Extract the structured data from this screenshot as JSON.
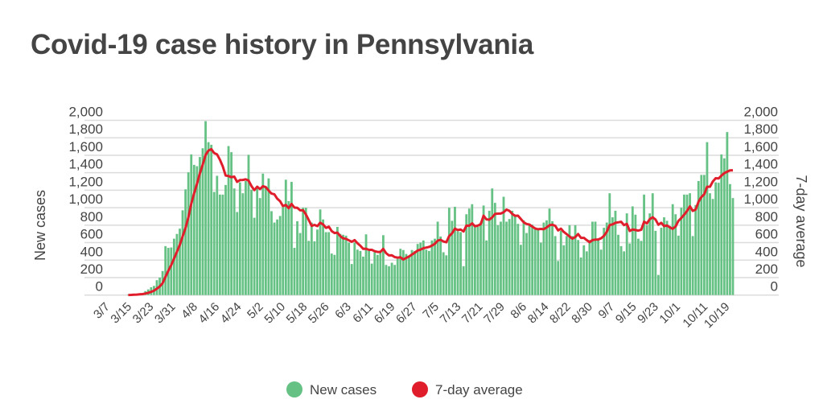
{
  "chart_data": {
    "type": "bar",
    "title": "Covid-19 case history in Pennsylvania",
    "ylabel": "New cases",
    "ylabel_right": "7-day average",
    "ylim": [
      0,
      2000
    ],
    "yticks": [
      "0",
      "200",
      "400",
      "600",
      "800",
      "1,000",
      "1,200",
      "1,400",
      "1,600",
      "1,800",
      "2,000"
    ],
    "ytick_values": [
      0,
      200,
      400,
      600,
      800,
      1000,
      1200,
      1400,
      1600,
      1800,
      2000
    ],
    "xtick_labels": [
      "3/7",
      "3/15",
      "3/23",
      "3/31",
      "4/8",
      "4/16",
      "4/24",
      "5/2",
      "5/10",
      "5/18",
      "5/26",
      "6/3",
      "6/11",
      "6/19",
      "6/27",
      "7/5",
      "7/13",
      "7/21",
      "7/29",
      "8/6",
      "8/14",
      "8/22",
      "8/30",
      "9/7",
      "9/15",
      "9/23",
      "10/1",
      "10/11",
      "10/19"
    ],
    "xtick_day_offsets": [
      0,
      8,
      16,
      24,
      32,
      40,
      48,
      56,
      64,
      72,
      80,
      88,
      96,
      104,
      112,
      120,
      128,
      136,
      144,
      152,
      160,
      168,
      176,
      184,
      192,
      200,
      208,
      218,
      226
    ],
    "grid": true,
    "legend_placement": "bottom-center",
    "series": [
      {
        "name": "New cases",
        "type": "bar",
        "color": "#66c284",
        "values": [
          0,
          0,
          0,
          0,
          0,
          0,
          5,
          10,
          10,
          15,
          15,
          20,
          45,
          65,
          90,
          105,
          170,
          200,
          275,
          560,
          540,
          545,
          645,
          700,
          760,
          970,
          1210,
          1405,
          1610,
          1490,
          1475,
          1580,
          1680,
          1990,
          1750,
          1720,
          1180,
          1365,
          1150,
          1150,
          1260,
          1705,
          1635,
          1220,
          950,
          1290,
          1165,
          1305,
          1605,
          1205,
          885,
          1220,
          1110,
          1390,
          1230,
          1335,
          960,
          830,
          865,
          905,
          1005,
          1320,
          1075,
          1295,
          540,
          845,
          710,
          1000,
          1000,
          620,
          830,
          615,
          750,
          980,
          865,
          720,
          720,
          475,
          460,
          780,
          700,
          690,
          680,
          600,
          355,
          600,
          520,
          505,
          440,
          695,
          505,
          360,
          490,
          460,
          505,
          685,
          345,
          330,
          370,
          345,
          415,
          530,
          515,
          470,
          450,
          515,
          505,
          585,
          600,
          625,
          520,
          505,
          625,
          645,
          840,
          670,
          490,
          455,
          1000,
          850,
          1010,
          730,
          720,
          330,
          925,
          990,
          1040,
          775,
          780,
          830,
          1025,
          625,
          965,
          1220,
          1055,
          800,
          840,
          1125,
          840,
          870,
          965,
          910,
          815,
          575,
          855,
          710,
          815,
          805,
          760,
          755,
          600,
          830,
          855,
          990,
          845,
          675,
          390,
          735,
          570,
          675,
          800,
          675,
          800,
          630,
          430,
          570,
          500,
          630,
          840,
          840,
          645,
          520,
          770,
          830,
          1165,
          890,
          965,
          690,
          560,
          500,
          935,
          590,
          1015,
          920,
          645,
          620,
          1150,
          800,
          935,
          1165,
          735,
          230,
          770,
          890,
          850,
          790,
          1040,
          925,
          680,
          1000,
          1150,
          1150,
          1165,
          675,
          1030,
          1305,
          1375,
          1375,
          1750,
          1165,
          1100,
          1290,
          1285,
          1610,
          1565,
          1865,
          1270,
          1110
        ]
      },
      {
        "name": "7-day average",
        "type": "line",
        "color": "#e01e2b",
        "rolling_window": 7,
        "source_series": "New cases"
      }
    ]
  }
}
